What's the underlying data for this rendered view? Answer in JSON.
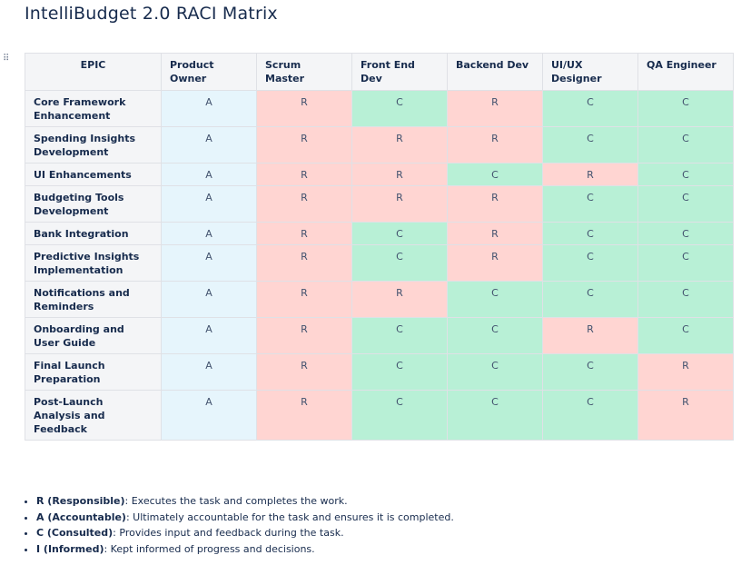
{
  "page": {
    "title": "IntelliBudget 2.0 RACI Matrix",
    "drag_handle_glyph": "⠿"
  },
  "table": {
    "headers": [
      "EPIC",
      "Product Owner",
      "Scrum Master",
      "Front End Dev",
      "Backend Dev",
      "UI/UX Designer",
      "QA Engineer"
    ],
    "rows": [
      {
        "epic": "Core Framework Enhancement",
        "cells": [
          "A",
          "R",
          "C",
          "R",
          "C",
          "C"
        ]
      },
      {
        "epic": "Spending Insights Development",
        "cells": [
          "A",
          "R",
          "R",
          "R",
          "C",
          "C"
        ]
      },
      {
        "epic": "UI Enhancements",
        "cells": [
          "A",
          "R",
          "R",
          "C",
          "R",
          "C"
        ]
      },
      {
        "epic": "Budgeting Tools Development",
        "cells": [
          "A",
          "R",
          "R",
          "R",
          "C",
          "C"
        ]
      },
      {
        "epic": "Bank Integration",
        "cells": [
          "A",
          "R",
          "C",
          "R",
          "C",
          "C"
        ]
      },
      {
        "epic": "Predictive Insights Implementation",
        "cells": [
          "A",
          "R",
          "C",
          "R",
          "C",
          "C"
        ]
      },
      {
        "epic": "Notifications and Reminders",
        "cells": [
          "A",
          "R",
          "R",
          "C",
          "C",
          "C"
        ]
      },
      {
        "epic": "Onboarding and User Guide",
        "cells": [
          "A",
          "R",
          "C",
          "C",
          "R",
          "C"
        ]
      },
      {
        "epic": "Final Launch Preparation",
        "cells": [
          "A",
          "R",
          "C",
          "C",
          "C",
          "R"
        ]
      },
      {
        "epic": "Post-Launch Analysis and Feedback",
        "cells": [
          "A",
          "R",
          "C",
          "C",
          "C",
          "R"
        ]
      }
    ]
  },
  "cell_colors": {
    "A": "#e6f5fc",
    "R": "#ffd5d2",
    "C": "#b8f0d6",
    "I": "#fff7d6"
  },
  "legend": [
    {
      "term": "R (Responsible)",
      "desc": ": Executes the task and completes the work."
    },
    {
      "term": "A (Accountable)",
      "desc": ": Ultimately accountable for the task and ensures it is completed."
    },
    {
      "term": "C (Consulted)",
      "desc": ": Provides input and feedback during the task."
    },
    {
      "term": "I (Informed)",
      "desc": ": Kept informed of progress and decisions."
    }
  ]
}
